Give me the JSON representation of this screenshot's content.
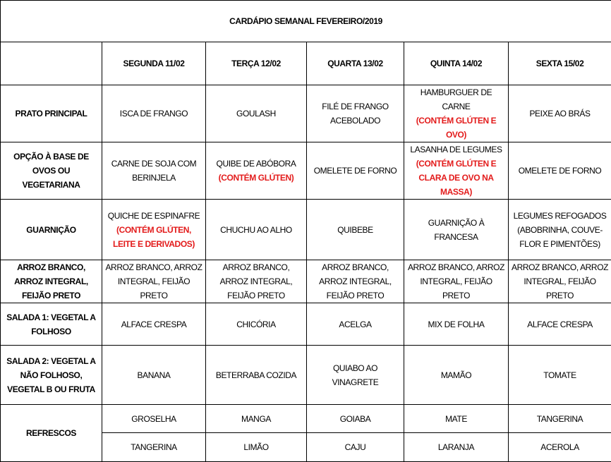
{
  "title": "CARDÁPIO SEMANAL FEVEREIRO/2019",
  "days": [
    "SEGUNDA 11/02",
    "TERÇA 12/02",
    "QUARTA 13/02",
    "QUINTA 14/02",
    "SEXTA 15/02"
  ],
  "note_color": "#e31b1b",
  "rows": [
    {
      "label": "PRATO PRINCIPAL",
      "cells": [
        {
          "text": "ISCA DE FRANGO"
        },
        {
          "text": "GOULASH"
        },
        {
          "text": "FILÉ DE FRANGO ACEBOLADO"
        },
        {
          "text": "HAMBURGUER DE CARNE",
          "note": "(CONTÉM GLÚTEN E OVO)"
        },
        {
          "text": "PEIXE AO BRÁS"
        }
      ]
    },
    {
      "label": "OPÇÃO À BASE DE OVOS OU VEGETARIANA",
      "cells": [
        {
          "text": "CARNE DE SOJA COM BERINJELA"
        },
        {
          "text": "QUIBE DE ABÓBORA",
          "note": "(CONTÉM GLÚTEN)"
        },
        {
          "text": "OMELETE DE FORNO"
        },
        {
          "text": "LASANHA DE LEGUMES",
          "note": "(CONTÉM GLÚTEN E CLARA DE OVO NA MASSA)"
        },
        {
          "text": "OMELETE DE FORNO"
        }
      ]
    },
    {
      "label": "GUARNIÇÃO",
      "cells": [
        {
          "text": "QUICHE DE ESPINAFRE",
          "note": "(CONTÉM GLÚTEN, LEITE E DERIVADOS)"
        },
        {
          "text": "CHUCHU AO ALHO"
        },
        {
          "text": "QUIBEBE"
        },
        {
          "text": "GUARNIÇÃO À FRANCESA"
        },
        {
          "text": "LEGUMES REFOGADOS (ABOBRINHA, COUVE-FLOR E PIMENTÕES)"
        }
      ]
    },
    {
      "label": "ARROZ BRANCO, ARROZ INTEGRAL, FEIJÃO PRETO",
      "cells": [
        {
          "text": "ARROZ BRANCO, ARROZ INTEGRAL, FEIJÃO PRETO"
        },
        {
          "text": "ARROZ BRANCO, ARROZ INTEGRAL, FEIJÃO PRETO"
        },
        {
          "text": "ARROZ BRANCO, ARROZ INTEGRAL, FEIJÃO PRETO"
        },
        {
          "text": "ARROZ BRANCO, ARROZ INTEGRAL, FEIJÃO PRETO"
        },
        {
          "text": "ARROZ BRANCO, ARROZ INTEGRAL, FEIJÃO PRETO"
        }
      ]
    },
    {
      "label": "SALADA 1: VEGETAL A FOLHOSO",
      "cells": [
        {
          "text": "ALFACE CRESPA"
        },
        {
          "text": "CHICÓRIA"
        },
        {
          "text": "ACELGA"
        },
        {
          "text": "MIX DE FOLHA"
        },
        {
          "text": "ALFACE CRESPA"
        }
      ]
    },
    {
      "label": "SALADA 2: VEGETAL A NÃO FOLHOSO, VEGETAL B OU FRUTA",
      "cells": [
        {
          "text": "BANANA"
        },
        {
          "text": "BETERRABA COZIDA"
        },
        {
          "text": "QUIABO AO VINAGRETE"
        },
        {
          "text": "MAMÃO"
        },
        {
          "text": "TOMATE"
        }
      ]
    }
  ],
  "refrescos": {
    "label": "REFRESCOS",
    "lines": [
      [
        "GROSELHA",
        "MANGA",
        "GOIABA",
        "MATE",
        "TANGERINA"
      ],
      [
        "TANGERINA",
        "LIMÃO",
        "CAJU",
        "LARANJA",
        "ACEROLA"
      ]
    ]
  }
}
